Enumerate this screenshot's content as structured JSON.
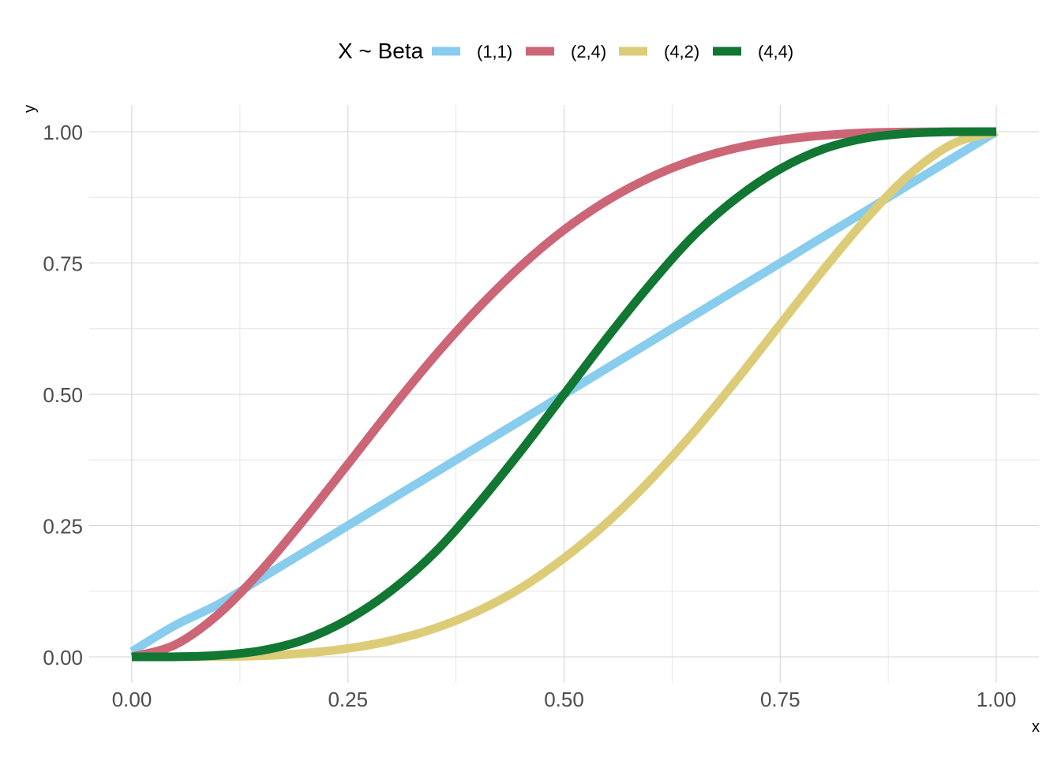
{
  "chart_data": {
    "type": "line",
    "title": "",
    "xlabel": "x",
    "ylabel": "y",
    "xlim": [
      0,
      1
    ],
    "ylim": [
      0,
      1
    ],
    "x_ticks": [
      0,
      0.25,
      0.5,
      0.75,
      1
    ],
    "x_tick_labels": [
      "0.00",
      "0.25",
      "0.50",
      "0.75",
      "1.00"
    ],
    "y_ticks": [
      0,
      0.25,
      0.5,
      0.75,
      1
    ],
    "y_tick_labels": [
      "0.00",
      "0.25",
      "0.50",
      "0.75",
      "1.00"
    ],
    "grid": true,
    "legend": {
      "title": "X ~ Beta",
      "position": "top"
    },
    "x": [
      0,
      0.05,
      0.1,
      0.15,
      0.2,
      0.25,
      0.3,
      0.35,
      0.4,
      0.45,
      0.5,
      0.55,
      0.6,
      0.65,
      0.7,
      0.75,
      0.8,
      0.85,
      0.9,
      0.95,
      1
    ],
    "series": [
      {
        "name": "(1,1)",
        "color": "#88CCEE",
        "values": [
          0.01,
          0.06,
          0.1,
          0.15,
          0.2,
          0.25,
          0.3,
          0.35,
          0.4,
          0.45,
          0.5,
          0.55,
          0.6,
          0.65,
          0.7,
          0.75,
          0.8,
          0.85,
          0.9,
          0.95,
          1
        ]
      },
      {
        "name": "(2,4)",
        "color": "#CC6677",
        "values": [
          0,
          0.023,
          0.081,
          0.165,
          0.263,
          0.367,
          0.472,
          0.572,
          0.663,
          0.744,
          0.813,
          0.869,
          0.913,
          0.946,
          0.969,
          0.984,
          0.993,
          0.998,
          0.9995,
          1,
          1
        ]
      },
      {
        "name": "(4,2)",
        "color": "#DDCC77",
        "values": [
          0,
          6e-05,
          0.0005,
          0.002,
          0.007,
          0.016,
          0.031,
          0.054,
          0.087,
          0.131,
          0.188,
          0.256,
          0.337,
          0.428,
          0.528,
          0.633,
          0.737,
          0.835,
          0.919,
          0.977,
          1
        ]
      },
      {
        "name": "(4,4)",
        "color": "#117733",
        "values": [
          0,
          0.0002,
          0.003,
          0.012,
          0.033,
          0.071,
          0.126,
          0.198,
          0.29,
          0.392,
          0.5,
          0.608,
          0.71,
          0.802,
          0.874,
          0.929,
          0.967,
          0.988,
          0.997,
          0.9998,
          1
        ]
      }
    ]
  }
}
